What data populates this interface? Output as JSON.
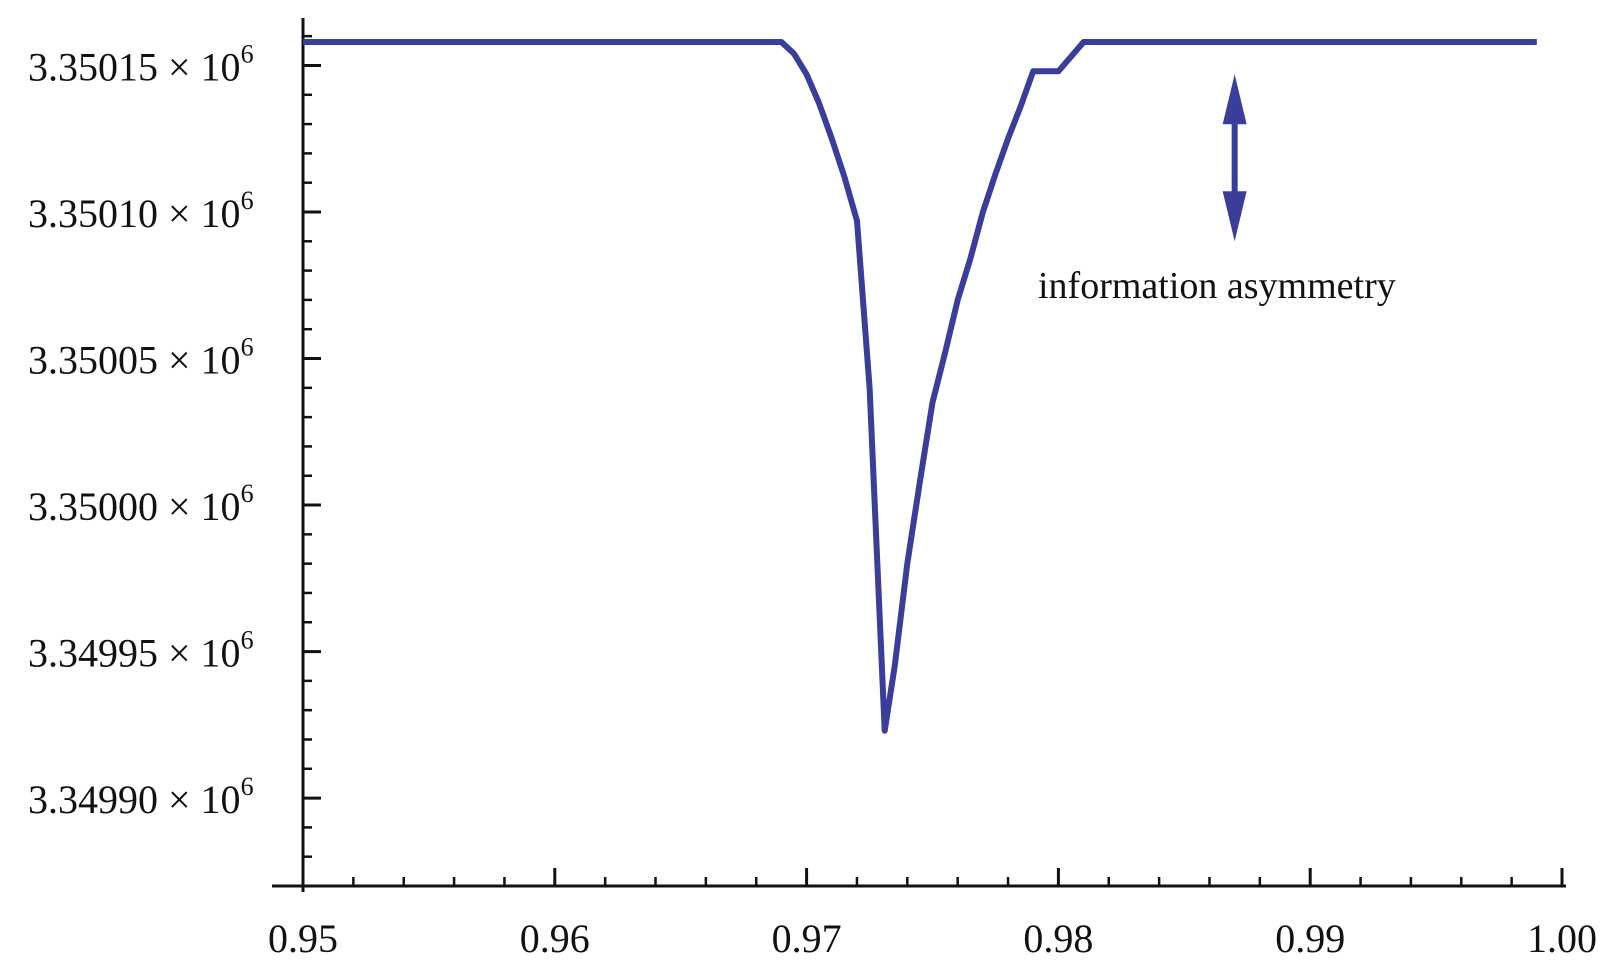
{
  "chart_data": {
    "type": "line",
    "title": "",
    "xlabel": "",
    "ylabel": "",
    "xlim": [
      0.95,
      1.0
    ],
    "ylim": [
      3349870,
      3350172
    ],
    "grid": false,
    "legend": "none",
    "x_ticks": [
      {
        "value": 0.95,
        "label": "0.95"
      },
      {
        "value": 0.96,
        "label": "0.96"
      },
      {
        "value": 0.97,
        "label": "0.97"
      },
      {
        "value": 0.98,
        "label": "0.98"
      },
      {
        "value": 0.99,
        "label": "0.99"
      },
      {
        "value": 1.0,
        "label": "1.00"
      }
    ],
    "y_ticks": [
      {
        "value": 3350150,
        "mantissa": "3.35015",
        "times": "× 10",
        "exponent": "6"
      },
      {
        "value": 3350100,
        "mantissa": "3.35010",
        "times": "× 10",
        "exponent": "6"
      },
      {
        "value": 3350050,
        "mantissa": "3.35005",
        "times": "× 10",
        "exponent": "6"
      },
      {
        "value": 3350000,
        "mantissa": "3.35000",
        "times": "× 10",
        "exponent": "6"
      },
      {
        "value": 3349950,
        "mantissa": "3.34995",
        "times": "× 10",
        "exponent": "6"
      },
      {
        "value": 3349900,
        "mantissa": "3.34990",
        "times": "× 10",
        "exponent": "6"
      }
    ],
    "series": [
      {
        "color": "#3a3d9a",
        "points": [
          [
            0.95,
            3350158
          ],
          [
            0.969,
            3350158
          ],
          [
            0.9695,
            3350154
          ],
          [
            0.97,
            3350147
          ],
          [
            0.9705,
            3350137
          ],
          [
            0.971,
            3350125
          ],
          [
            0.9715,
            3350112
          ],
          [
            0.972,
            3350097
          ],
          [
            0.9725,
            3350040
          ],
          [
            0.9731,
            3349923
          ],
          [
            0.9735,
            3349945
          ],
          [
            0.974,
            3349980
          ],
          [
            0.9745,
            3350008
          ],
          [
            0.975,
            3350035
          ],
          [
            0.9755,
            3350052
          ],
          [
            0.976,
            3350070
          ],
          [
            0.9765,
            3350084
          ],
          [
            0.977,
            3350100
          ],
          [
            0.9775,
            3350113
          ],
          [
            0.978,
            3350125
          ],
          [
            0.9785,
            3350136
          ],
          [
            0.979,
            3350148
          ],
          [
            0.98,
            3350148
          ],
          [
            0.9805,
            3350153
          ],
          [
            0.981,
            3350158
          ],
          [
            0.999,
            3350158
          ]
        ]
      }
    ],
    "annotation": {
      "text": "information asymmetry",
      "arrow_x": 0.987,
      "arrow_y_top": 3350147,
      "arrow_y_bottom": 3350090
    }
  }
}
